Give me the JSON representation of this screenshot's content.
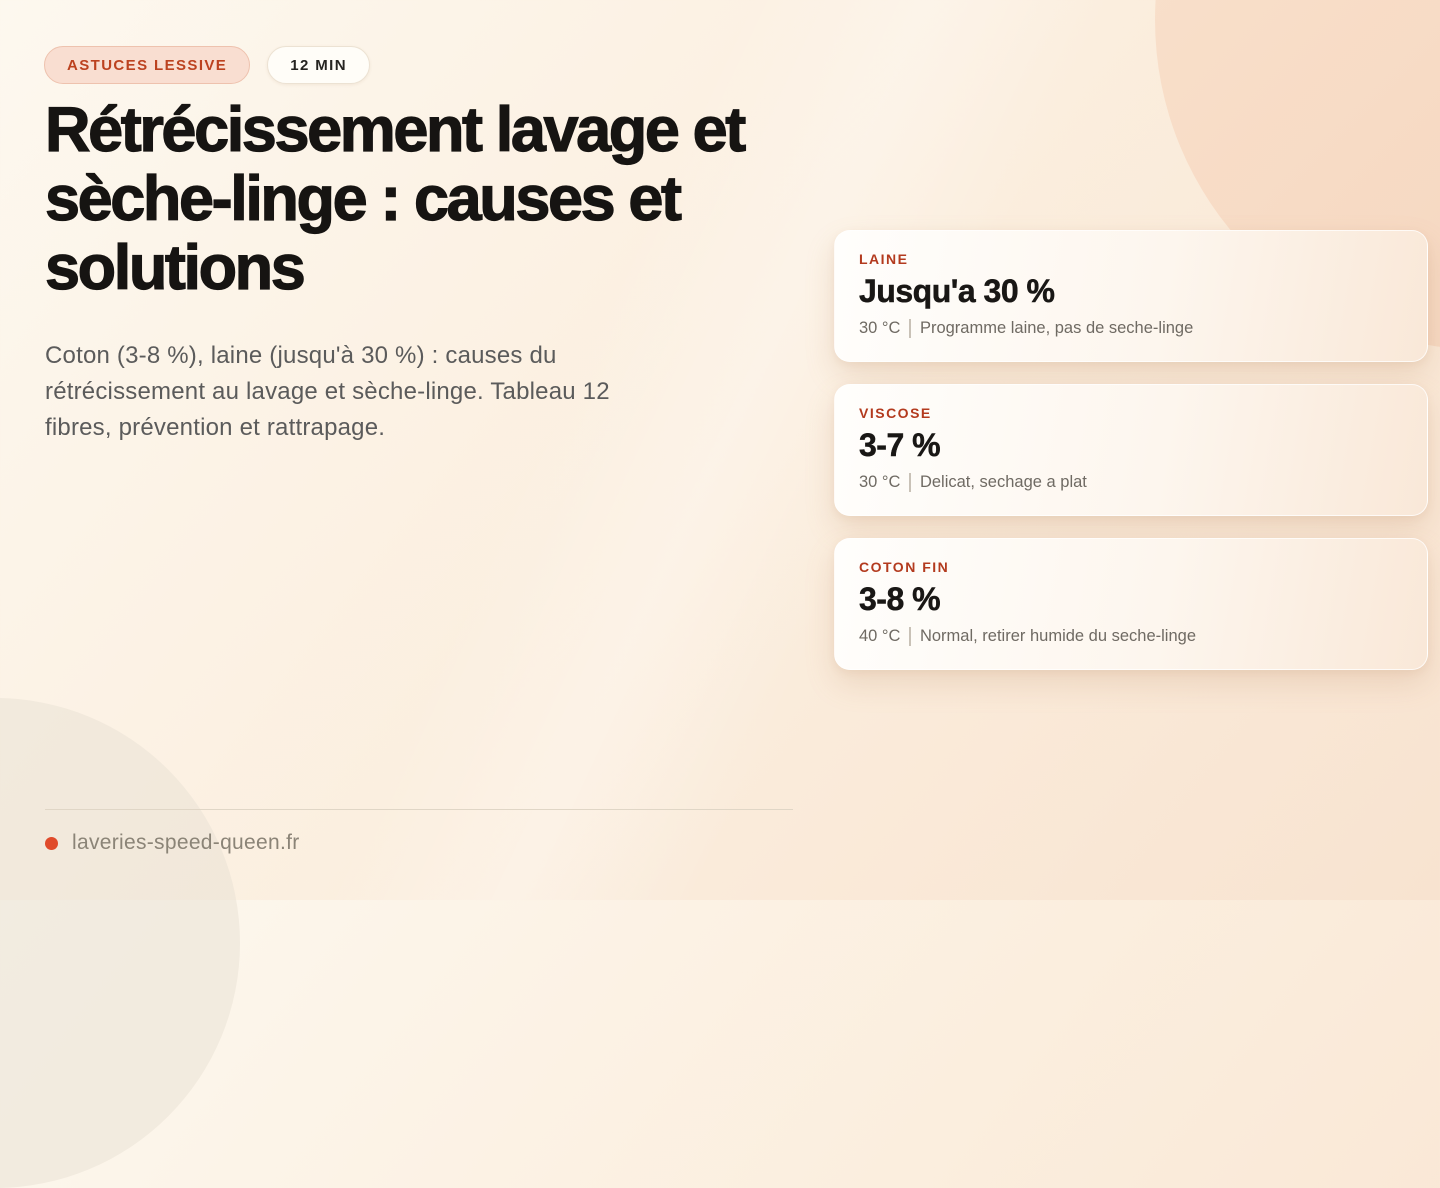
{
  "badges": {
    "category": "ASTUCES LESSIVE",
    "read_time": "12 MIN"
  },
  "title": "Rétrécissement lavage et sèche-linge : causes et solutions",
  "subtitle": "Coton (3-8 %), laine (jusqu'à 30 %) : causes du rétrécissement au lavage et sèche-linge. Tableau 12 fibres, prévention et rattrapage.",
  "cards": [
    {
      "label": "LAINE",
      "value": "Jusqu'a 30 %",
      "temp": "30 °C",
      "note": "Programme laine, pas de seche-linge"
    },
    {
      "label": "VISCOSE",
      "value": "3-7 %",
      "temp": "30 °C",
      "note": "Delicat, sechage a plat"
    },
    {
      "label": "COTON FIN",
      "value": "3-8 %",
      "temp": "40 °C",
      "note": "Normal, retirer humide du seche-linge"
    }
  ],
  "footer": {
    "domain": "laveries-speed-queen.fr"
  },
  "colors": {
    "accent": "#bc421f",
    "card_label": "#b33a1e",
    "brand_dot": "#e04b2b",
    "title": "#161412",
    "subtitle": "#5b5b5b",
    "meta": "#6f6a63",
    "background_top_left": "#fdf8ef",
    "background_bottom_right": "#f8e3d0",
    "circle_peach": "#f7dbc5"
  }
}
